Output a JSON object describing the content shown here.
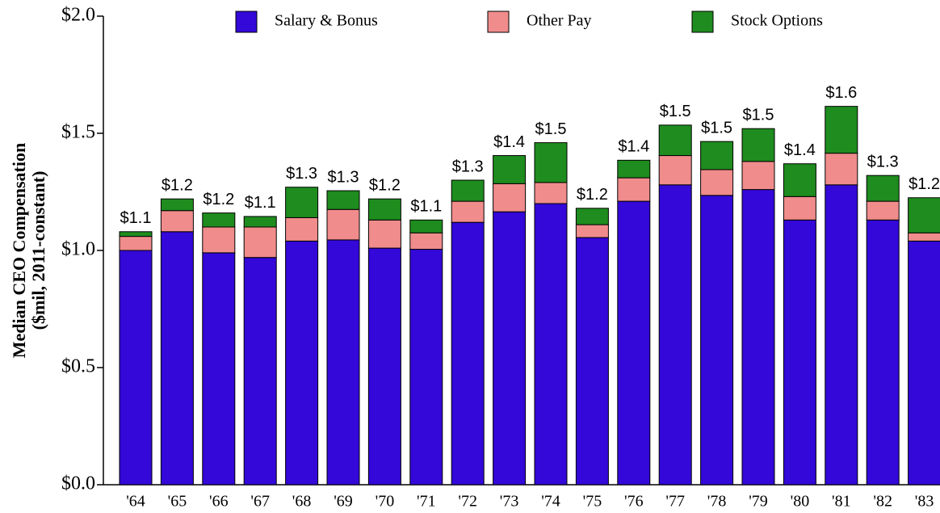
{
  "chart_data": {
    "type": "stacked_bar",
    "ylabel": [
      "Median CEO Compensation",
      "($mil, 2011-constant)"
    ],
    "categories": [
      "'64",
      "'65",
      "'66",
      "'67",
      "'68",
      "'69",
      "'70",
      "'71",
      "'72",
      "'73",
      "'74",
      "'75",
      "'76",
      "'77",
      "'78",
      "'79",
      "'80",
      "'81",
      "'82",
      "'83"
    ],
    "series": [
      {
        "name": "Salary & Bonus",
        "color": "#3308d8",
        "values": [
          1.0,
          1.08,
          0.99,
          0.97,
          1.04,
          1.045,
          1.01,
          1.005,
          1.12,
          1.165,
          1.2,
          1.055,
          1.21,
          1.28,
          1.235,
          1.26,
          1.13,
          1.28,
          1.13,
          1.04
        ]
      },
      {
        "name": "Other Pay",
        "color": "#f08c8c",
        "values": [
          0.06,
          0.09,
          0.11,
          0.13,
          0.1,
          0.13,
          0.12,
          0.07,
          0.09,
          0.12,
          0.09,
          0.055,
          0.1,
          0.125,
          0.11,
          0.12,
          0.1,
          0.135,
          0.08,
          0.035
        ]
      },
      {
        "name": "Stock Options",
        "color": "#1e8c1e",
        "values": [
          0.02,
          0.05,
          0.06,
          0.045,
          0.13,
          0.08,
          0.09,
          0.055,
          0.09,
          0.12,
          0.17,
          0.07,
          0.075,
          0.13,
          0.12,
          0.14,
          0.14,
          0.2,
          0.11,
          0.15
        ]
      }
    ],
    "total_labels": [
      "$1.1",
      "$1.2",
      "$1.2",
      "$1.1",
      "$1.3",
      "$1.3",
      "$1.2",
      "$1.1",
      "$1.3",
      "$1.4",
      "$1.5",
      "$1.2",
      "$1.4",
      "$1.5",
      "$1.5",
      "$1.5",
      "$1.4",
      "$1.6",
      "$1.3",
      "$1.2"
    ],
    "ylim": [
      0,
      2
    ],
    "yticks": [
      {
        "value": 0,
        "label": "$0.0"
      },
      {
        "value": 0.5,
        "label": "$0.5"
      },
      {
        "value": 1,
        "label": "$1.0"
      },
      {
        "value": 1.5,
        "label": "$1.5"
      },
      {
        "value": 2,
        "label": "$2.0"
      }
    ],
    "legend": "top"
  }
}
